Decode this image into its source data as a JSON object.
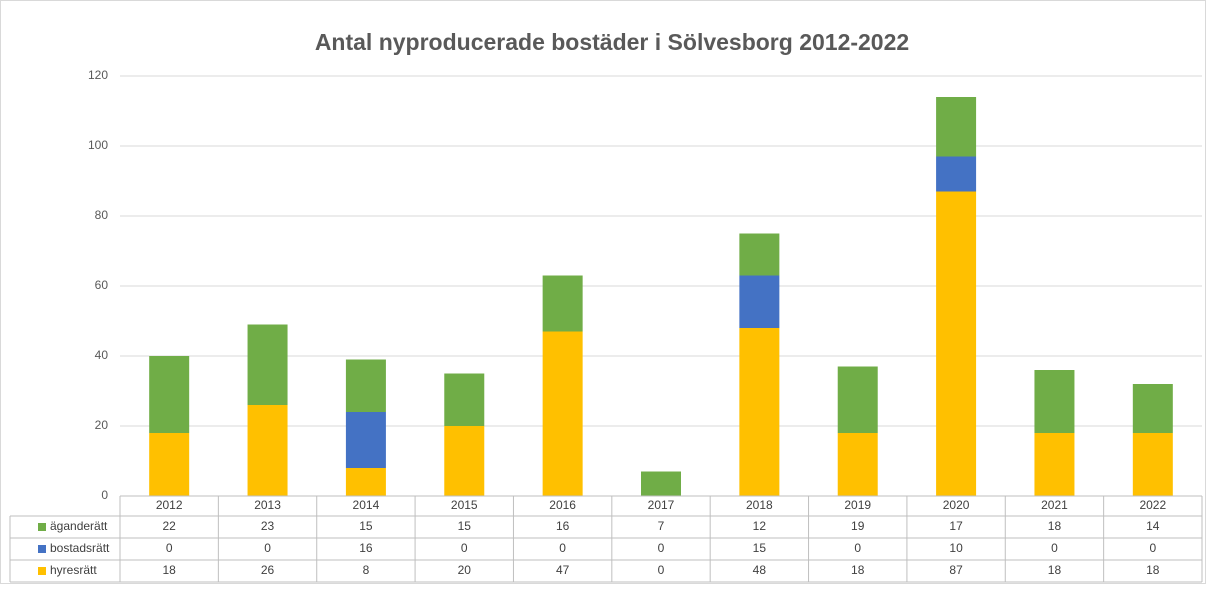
{
  "chart_data": {
    "type": "stacked-bar",
    "title": "Antal nyproducerade bostäder i Sölvesborg 2012-2022",
    "categories": [
      "2012",
      "2013",
      "2014",
      "2015",
      "2016",
      "2017",
      "2018",
      "2019",
      "2020",
      "2021",
      "2022"
    ],
    "series": [
      {
        "name": "hyresrätt",
        "color": "#ffc000",
        "values": [
          18,
          26,
          8,
          20,
          47,
          0,
          48,
          18,
          87,
          18,
          18
        ]
      },
      {
        "name": "bostadsrätt",
        "color": "#4472c4",
        "values": [
          0,
          0,
          16,
          0,
          0,
          0,
          15,
          0,
          10,
          0,
          0
        ]
      },
      {
        "name": "äganderätt",
        "color": "#70ad47",
        "values": [
          22,
          23,
          15,
          15,
          16,
          7,
          12,
          19,
          17,
          18,
          14
        ]
      }
    ],
    "ylim": [
      0,
      120
    ],
    "yticks": [
      0,
      20,
      40,
      60,
      80,
      100,
      120
    ],
    "grid": true
  }
}
